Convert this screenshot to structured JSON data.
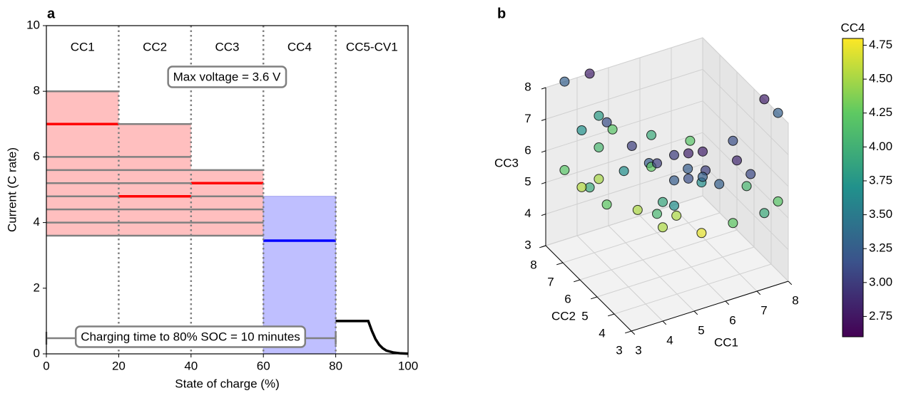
{
  "chart_data": [
    {
      "type": "step",
      "panel": "a",
      "xlabel": "State of charge (%)",
      "ylabel": "Current (C rate)",
      "xlim": [
        0,
        100
      ],
      "ylim": [
        0,
        10
      ],
      "xticks": [
        0,
        20,
        40,
        60,
        80,
        100
      ],
      "yticks": [
        0,
        2,
        4,
        6,
        8,
        10
      ],
      "regions": {
        "labels": [
          "CC1",
          "CC2",
          "CC3",
          "CC4",
          "CC5-CV1"
        ],
        "edges": [
          0,
          20,
          40,
          60,
          80,
          100
        ]
      },
      "candidates": [
        [
          3.6,
          4,
          4.4,
          4.8,
          5.2,
          5.6,
          6,
          8
        ],
        [
          3.6,
          4,
          4.4,
          4.8,
          5.2,
          5.6,
          6,
          7
        ],
        [
          3.6,
          4,
          4.4,
          4.8,
          5.2,
          5.6
        ]
      ],
      "candidate_color": "#808080",
      "fill_color": "#ffbfbf",
      "selected": {
        "values": [
          7,
          4.8,
          5.2
        ],
        "color": "#ff0000"
      },
      "cc4": {
        "value": 3.45,
        "upper": 4.8,
        "color": "#0000ff",
        "fill_color": "#bfbfff"
      },
      "cv_curve": {
        "x": [
          80,
          89,
          90,
          91,
          92,
          93,
          94,
          96,
          98,
          100
        ],
        "y": [
          1,
          1,
          0.7,
          0.45,
          0.28,
          0.17,
          0.1,
          0.04,
          0.015,
          0.005
        ],
        "color": "#000000"
      },
      "soc_target": 80,
      "annotations": [
        "Max voltage = 3.6 V",
        "Charging time to 80% SOC = 10 minutes"
      ]
    },
    {
      "type": "scatter3d",
      "panel": "b",
      "xlabel": "CC1",
      "ylabel": "CC2",
      "zlabel": "CC3",
      "colorbar_label": "CC4",
      "xlim": [
        3,
        8
      ],
      "ylim": [
        3,
        8
      ],
      "zlim": [
        3,
        8
      ],
      "xticks": [
        3,
        4,
        5,
        6,
        7,
        8
      ],
      "yticks": [
        3,
        4,
        5,
        6,
        7,
        8
      ],
      "zticks": [
        3,
        4,
        5,
        6,
        7,
        8
      ],
      "colormap": "viridis",
      "clim": [
        2.6,
        4.8
      ],
      "cticks": [
        2.75,
        {
          "value": 3,
          "label": "3.00"
        },
        3.25,
        {
          "value": 3.5,
          "label": "3.50"
        },
        3.75,
        {
          "value": 4,
          "label": "4.00"
        },
        4.25,
        {
          "value": 4.5,
          "label": "4.50"
        },
        4.75
      ],
      "x": [
        5.2,
        6,
        4.4,
        6,
        6,
        3.6,
        3.6,
        3.6,
        3.6,
        4.4,
        5.2,
        5.2,
        5.2,
        6,
        6,
        8,
        8,
        7,
        8,
        7,
        6,
        4.4,
        4.4,
        4.4,
        4.4,
        8,
        8,
        4.4,
        7,
        7,
        4.4,
        7,
        7,
        6,
        5.2,
        3.6,
        3.6,
        3.6,
        5.2,
        8,
        3.6,
        7,
        6,
        8,
        8
      ],
      "y": [
        5.2,
        6,
        6,
        4.4,
        6,
        6,
        8,
        7,
        6,
        5.2,
        4.4,
        5.2,
        6,
        5.2,
        6,
        6,
        5.2,
        5.2,
        4.4,
        4.4,
        4.4,
        8,
        4.4,
        7,
        4.4,
        8,
        4.4,
        8,
        7,
        4.4,
        7,
        7,
        6,
        7,
        7,
        5.2,
        8,
        7,
        3.6,
        3.6,
        6,
        3.6,
        7,
        8,
        3.6
      ],
      "z": [
        5.2,
        6,
        6,
        6,
        4.4,
        8,
        8,
        7,
        6,
        5.2,
        5.2,
        4.4,
        6,
        6,
        5.2,
        5.2,
        5.2,
        5.2,
        4.4,
        4.4,
        4.4,
        4.4,
        8,
        4.4,
        7,
        4.4,
        8,
        8,
        4.4,
        7,
        7,
        5.2,
        5.2,
        5.2,
        6,
        8,
        5.2,
        5.2,
        8,
        5.2,
        7,
        6,
        3.6,
        3.6,
        8
      ],
      "c": [
        3.9,
        3.0,
        3.67,
        3.67,
        3.67,
        3.79,
        3.27,
        3.71,
        4.5,
        4.52,
        4.52,
        4.52,
        3.25,
        3.25,
        3.25,
        2.86,
        3.09,
        3.27,
        3.94,
        4.24,
        4.72,
        3.94,
        3.94,
        4.24,
        4.24,
        2.81,
        2.81,
        2.81,
        3.12,
        3.12,
        3.12,
        2.82,
        3.02,
        3.02,
        3.02,
        4.2,
        4.2,
        4.54,
        4.2,
        4.2,
        4.07,
        4.07,
        4.07,
        3.27,
        3.27
      ]
    }
  ]
}
